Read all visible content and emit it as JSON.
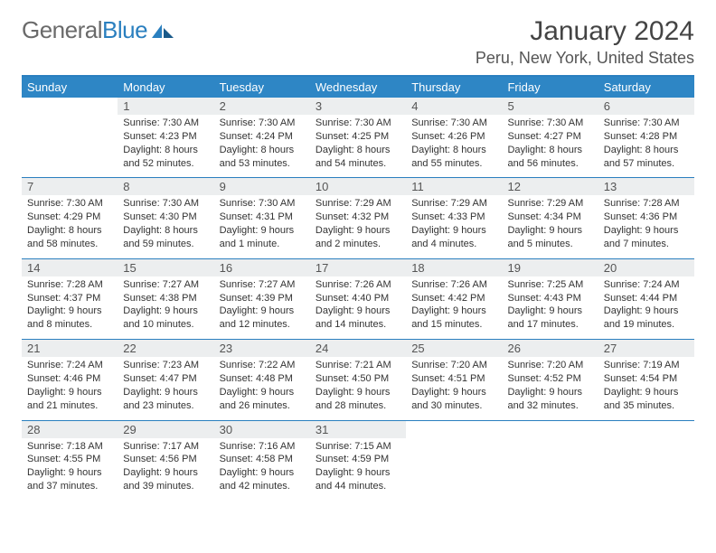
{
  "logo": {
    "part1": "General",
    "part2": "Blue"
  },
  "title": "January 2024",
  "location": "Peru, New York, United States",
  "colors": {
    "header_bg": "#2e86c5",
    "header_text": "#ffffff",
    "rule": "#2a7fbf",
    "daynum_bg": "#eceeef",
    "text": "#333333",
    "logo_gray": "#6a6a6a",
    "logo_blue": "#2a7fbf"
  },
  "weekdays": [
    "Sunday",
    "Monday",
    "Tuesday",
    "Wednesday",
    "Thursday",
    "Friday",
    "Saturday"
  ],
  "weeks": [
    [
      {
        "n": "",
        "sr": "",
        "ss": "",
        "dl": ""
      },
      {
        "n": "1",
        "sr": "Sunrise: 7:30 AM",
        "ss": "Sunset: 4:23 PM",
        "dl": "Daylight: 8 hours and 52 minutes."
      },
      {
        "n": "2",
        "sr": "Sunrise: 7:30 AM",
        "ss": "Sunset: 4:24 PM",
        "dl": "Daylight: 8 hours and 53 minutes."
      },
      {
        "n": "3",
        "sr": "Sunrise: 7:30 AM",
        "ss": "Sunset: 4:25 PM",
        "dl": "Daylight: 8 hours and 54 minutes."
      },
      {
        "n": "4",
        "sr": "Sunrise: 7:30 AM",
        "ss": "Sunset: 4:26 PM",
        "dl": "Daylight: 8 hours and 55 minutes."
      },
      {
        "n": "5",
        "sr": "Sunrise: 7:30 AM",
        "ss": "Sunset: 4:27 PM",
        "dl": "Daylight: 8 hours and 56 minutes."
      },
      {
        "n": "6",
        "sr": "Sunrise: 7:30 AM",
        "ss": "Sunset: 4:28 PM",
        "dl": "Daylight: 8 hours and 57 minutes."
      }
    ],
    [
      {
        "n": "7",
        "sr": "Sunrise: 7:30 AM",
        "ss": "Sunset: 4:29 PM",
        "dl": "Daylight: 8 hours and 58 minutes."
      },
      {
        "n": "8",
        "sr": "Sunrise: 7:30 AM",
        "ss": "Sunset: 4:30 PM",
        "dl": "Daylight: 8 hours and 59 minutes."
      },
      {
        "n": "9",
        "sr": "Sunrise: 7:30 AM",
        "ss": "Sunset: 4:31 PM",
        "dl": "Daylight: 9 hours and 1 minute."
      },
      {
        "n": "10",
        "sr": "Sunrise: 7:29 AM",
        "ss": "Sunset: 4:32 PM",
        "dl": "Daylight: 9 hours and 2 minutes."
      },
      {
        "n": "11",
        "sr": "Sunrise: 7:29 AM",
        "ss": "Sunset: 4:33 PM",
        "dl": "Daylight: 9 hours and 4 minutes."
      },
      {
        "n": "12",
        "sr": "Sunrise: 7:29 AM",
        "ss": "Sunset: 4:34 PM",
        "dl": "Daylight: 9 hours and 5 minutes."
      },
      {
        "n": "13",
        "sr": "Sunrise: 7:28 AM",
        "ss": "Sunset: 4:36 PM",
        "dl": "Daylight: 9 hours and 7 minutes."
      }
    ],
    [
      {
        "n": "14",
        "sr": "Sunrise: 7:28 AM",
        "ss": "Sunset: 4:37 PM",
        "dl": "Daylight: 9 hours and 8 minutes."
      },
      {
        "n": "15",
        "sr": "Sunrise: 7:27 AM",
        "ss": "Sunset: 4:38 PM",
        "dl": "Daylight: 9 hours and 10 minutes."
      },
      {
        "n": "16",
        "sr": "Sunrise: 7:27 AM",
        "ss": "Sunset: 4:39 PM",
        "dl": "Daylight: 9 hours and 12 minutes."
      },
      {
        "n": "17",
        "sr": "Sunrise: 7:26 AM",
        "ss": "Sunset: 4:40 PM",
        "dl": "Daylight: 9 hours and 14 minutes."
      },
      {
        "n": "18",
        "sr": "Sunrise: 7:26 AM",
        "ss": "Sunset: 4:42 PM",
        "dl": "Daylight: 9 hours and 15 minutes."
      },
      {
        "n": "19",
        "sr": "Sunrise: 7:25 AM",
        "ss": "Sunset: 4:43 PM",
        "dl": "Daylight: 9 hours and 17 minutes."
      },
      {
        "n": "20",
        "sr": "Sunrise: 7:24 AM",
        "ss": "Sunset: 4:44 PM",
        "dl": "Daylight: 9 hours and 19 minutes."
      }
    ],
    [
      {
        "n": "21",
        "sr": "Sunrise: 7:24 AM",
        "ss": "Sunset: 4:46 PM",
        "dl": "Daylight: 9 hours and 21 minutes."
      },
      {
        "n": "22",
        "sr": "Sunrise: 7:23 AM",
        "ss": "Sunset: 4:47 PM",
        "dl": "Daylight: 9 hours and 23 minutes."
      },
      {
        "n": "23",
        "sr": "Sunrise: 7:22 AM",
        "ss": "Sunset: 4:48 PM",
        "dl": "Daylight: 9 hours and 26 minutes."
      },
      {
        "n": "24",
        "sr": "Sunrise: 7:21 AM",
        "ss": "Sunset: 4:50 PM",
        "dl": "Daylight: 9 hours and 28 minutes."
      },
      {
        "n": "25",
        "sr": "Sunrise: 7:20 AM",
        "ss": "Sunset: 4:51 PM",
        "dl": "Daylight: 9 hours and 30 minutes."
      },
      {
        "n": "26",
        "sr": "Sunrise: 7:20 AM",
        "ss": "Sunset: 4:52 PM",
        "dl": "Daylight: 9 hours and 32 minutes."
      },
      {
        "n": "27",
        "sr": "Sunrise: 7:19 AM",
        "ss": "Sunset: 4:54 PM",
        "dl": "Daylight: 9 hours and 35 minutes."
      }
    ],
    [
      {
        "n": "28",
        "sr": "Sunrise: 7:18 AM",
        "ss": "Sunset: 4:55 PM",
        "dl": "Daylight: 9 hours and 37 minutes."
      },
      {
        "n": "29",
        "sr": "Sunrise: 7:17 AM",
        "ss": "Sunset: 4:56 PM",
        "dl": "Daylight: 9 hours and 39 minutes."
      },
      {
        "n": "30",
        "sr": "Sunrise: 7:16 AM",
        "ss": "Sunset: 4:58 PM",
        "dl": "Daylight: 9 hours and 42 minutes."
      },
      {
        "n": "31",
        "sr": "Sunrise: 7:15 AM",
        "ss": "Sunset: 4:59 PM",
        "dl": "Daylight: 9 hours and 44 minutes."
      },
      {
        "n": "",
        "sr": "",
        "ss": "",
        "dl": ""
      },
      {
        "n": "",
        "sr": "",
        "ss": "",
        "dl": ""
      },
      {
        "n": "",
        "sr": "",
        "ss": "",
        "dl": ""
      }
    ]
  ]
}
